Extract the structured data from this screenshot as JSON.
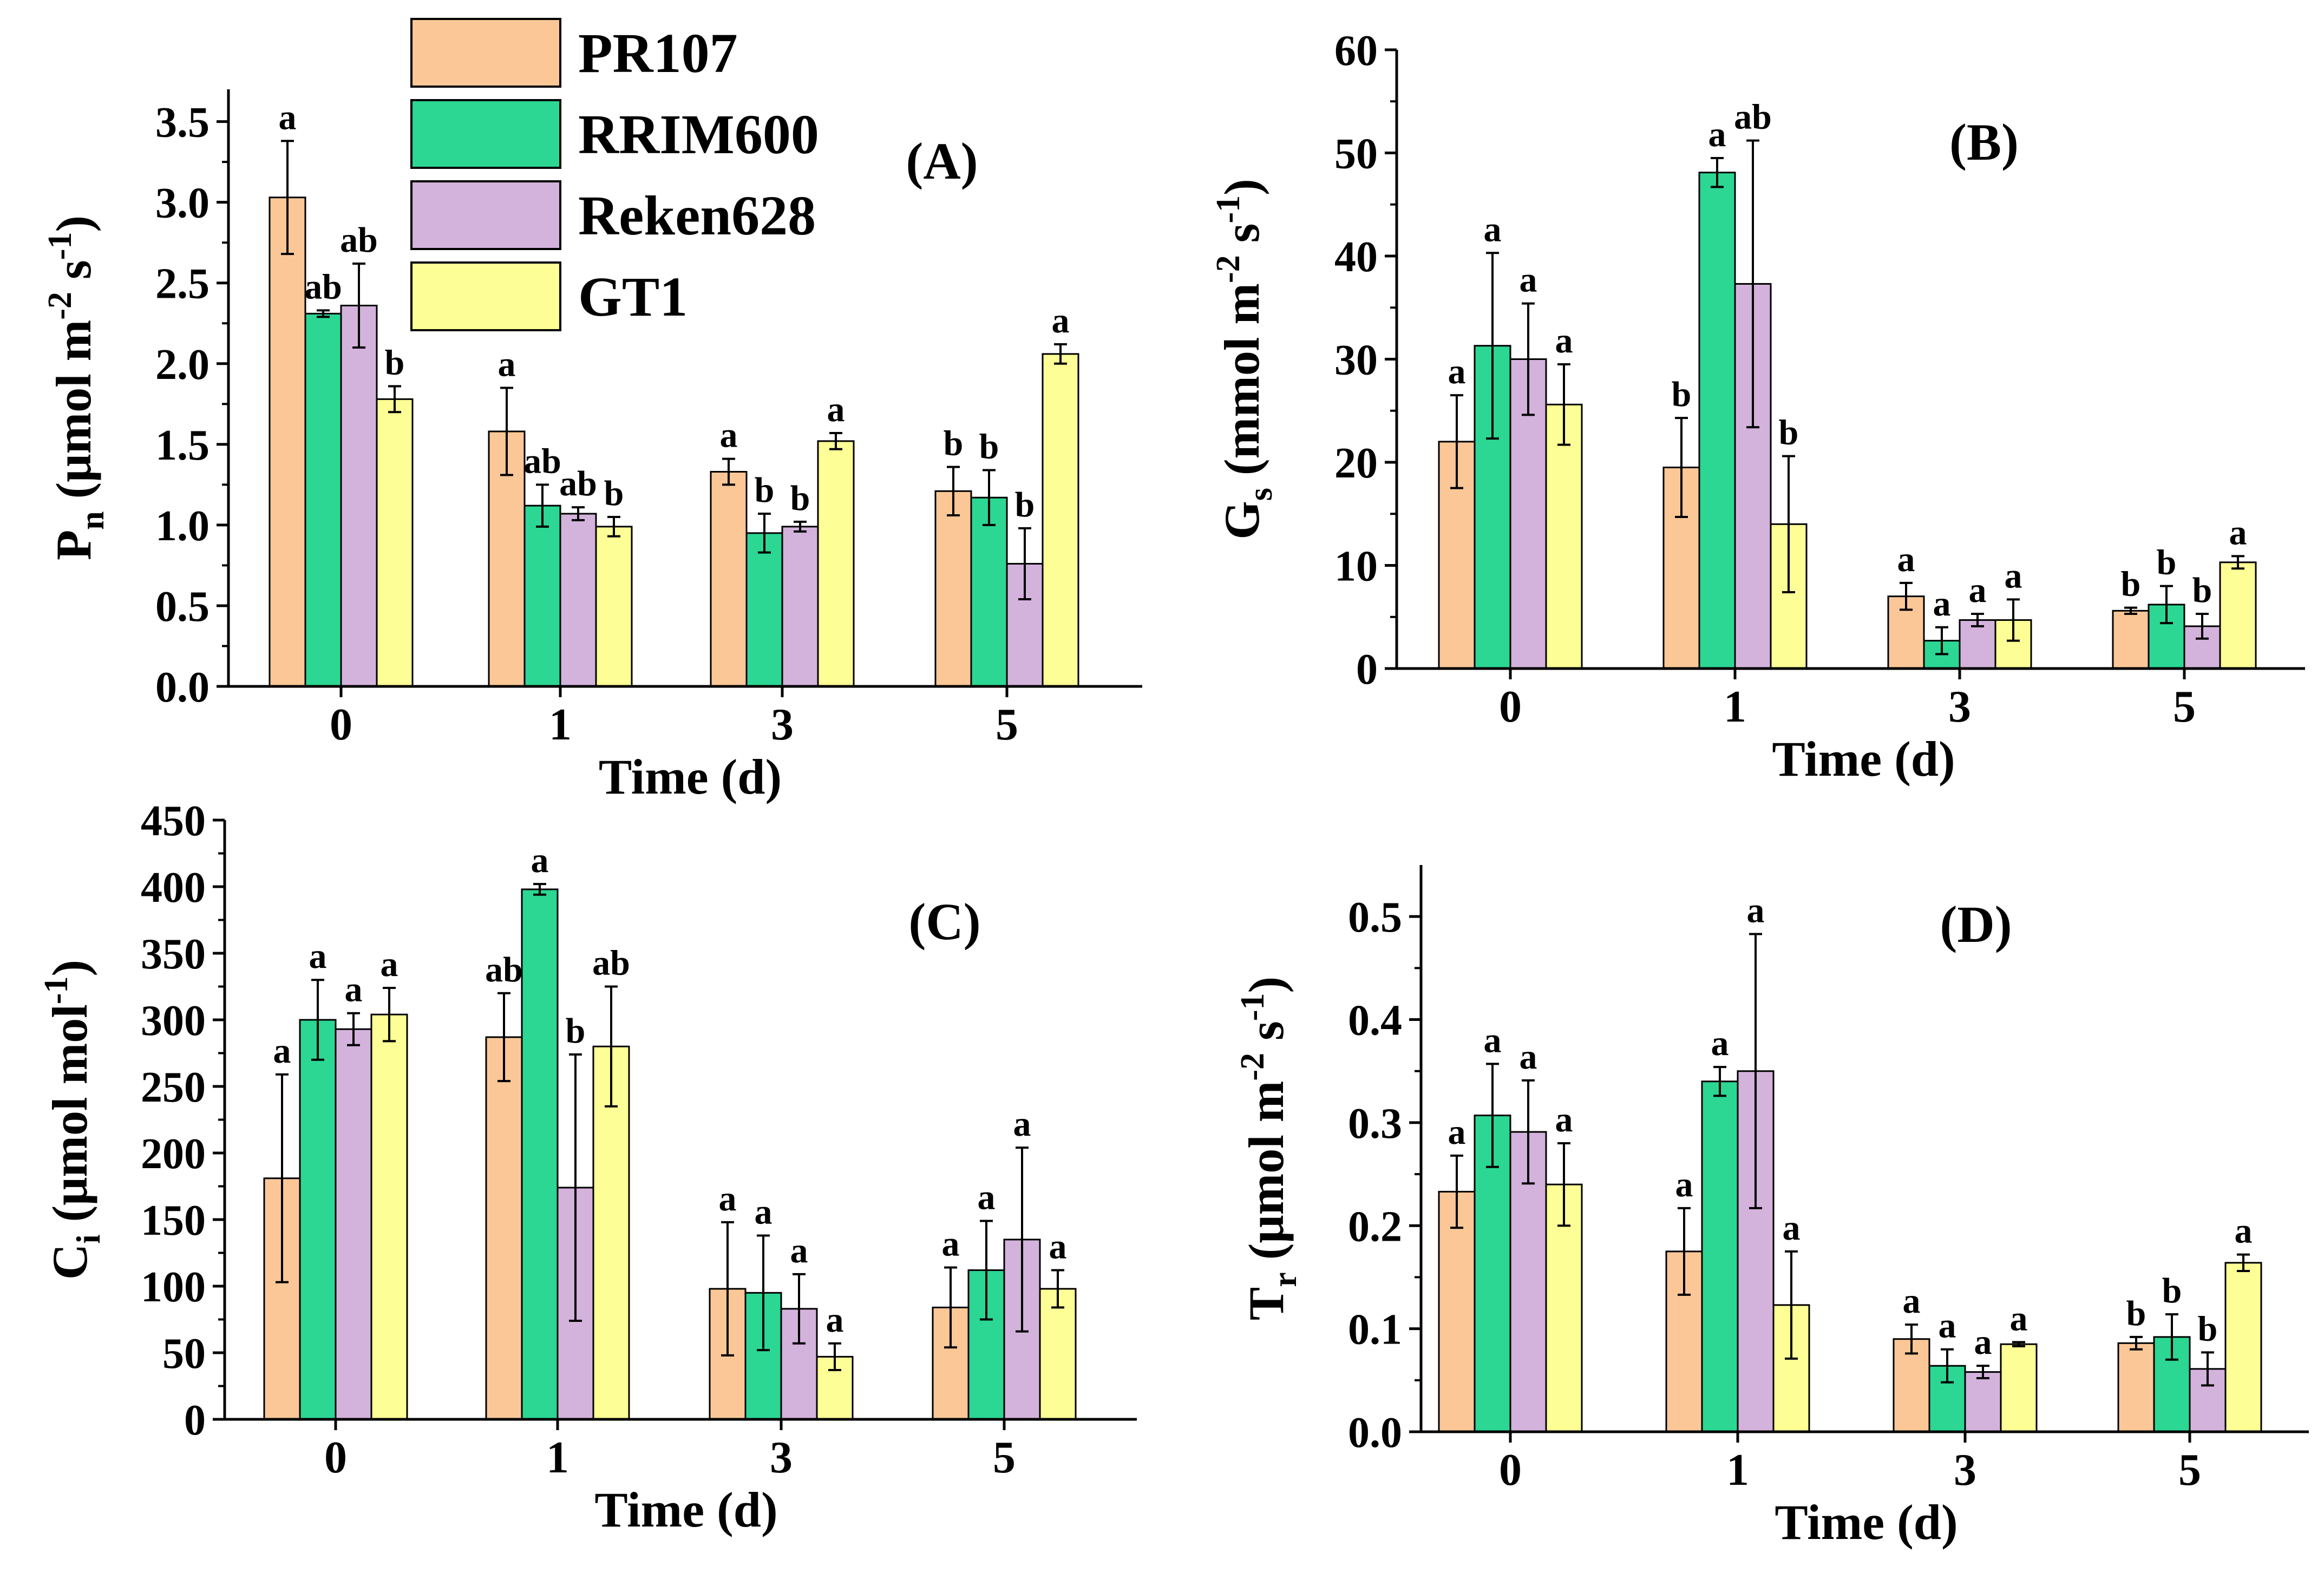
{
  "colors": {
    "PR107": "#FCC797",
    "RRIM600": "#2BD793",
    "Reken628": "#D3B2DB",
    "GT1": "#FEFE96"
  },
  "legend": [
    "PR107",
    "RRIM600",
    "Reken628",
    "GT1"
  ],
  "chart_data": [
    {
      "panel": "(A)",
      "type": "bar",
      "ylabel_main": "P",
      "ylabel_sub": "n",
      "yunit_pre": " (μmol m",
      "yunit_exp1": "-2",
      "yunit_mid": " s",
      "yunit_exp2": "-1",
      "yunit_post": ")",
      "xlabel": "Time (d)",
      "categories": [
        "0",
        "1",
        "3",
        "5"
      ],
      "ylim": [
        0,
        3.7
      ],
      "yticks": [
        "0.0",
        "0.5",
        "1.0",
        "1.5",
        "2.0",
        "2.5",
        "3.0",
        "3.5"
      ],
      "ytick_values": [
        0,
        0.5,
        1.0,
        1.5,
        2.0,
        2.5,
        3.0,
        3.5
      ],
      "series": [
        {
          "name": "PR107",
          "values": [
            3.03,
            1.58,
            1.33,
            1.21
          ],
          "errors": [
            0.35,
            0.27,
            0.08,
            0.15
          ],
          "letters": [
            "a",
            "a",
            "a",
            "b"
          ]
        },
        {
          "name": "RRIM600",
          "values": [
            2.31,
            1.12,
            0.95,
            1.17
          ],
          "errors": [
            0.02,
            0.13,
            0.12,
            0.17
          ],
          "letters": [
            "ab",
            "ab",
            "b",
            "b"
          ]
        },
        {
          "name": "Reken628",
          "values": [
            2.36,
            1.07,
            0.99,
            0.76
          ],
          "errors": [
            0.26,
            0.04,
            0.03,
            0.22
          ],
          "letters": [
            "ab",
            "ab",
            "b",
            "b"
          ]
        },
        {
          "name": "GT1",
          "values": [
            1.78,
            0.99,
            1.52,
            2.06
          ],
          "errors": [
            0.08,
            0.06,
            0.05,
            0.06
          ],
          "letters": [
            "b",
            "b",
            "a",
            "a"
          ]
        }
      ]
    },
    {
      "panel": "(B)",
      "type": "bar",
      "ylabel_main": "G",
      "ylabel_sub": "s",
      "yunit_pre": " (mmol m",
      "yunit_exp1": "-2",
      "yunit_mid": " s",
      "yunit_exp2": "-1",
      "yunit_post": ")",
      "xlabel": "Time (d)",
      "categories": [
        "0",
        "1",
        "3",
        "5"
      ],
      "ylim": [
        0,
        60
      ],
      "yticks": [
        "0",
        "10",
        "20",
        "30",
        "40",
        "50",
        "60"
      ],
      "ytick_values": [
        0,
        10,
        20,
        30,
        40,
        50,
        60
      ],
      "series": [
        {
          "name": "PR107",
          "values": [
            22,
            19.5,
            7,
            5.6
          ],
          "errors": [
            4.5,
            4.8,
            1.3,
            0.3
          ],
          "letters": [
            "a",
            "b",
            "a",
            "b"
          ]
        },
        {
          "name": "RRIM600",
          "values": [
            31.3,
            48.1,
            2.7,
            6.2
          ],
          "errors": [
            9,
            1.4,
            1.3,
            1.8
          ],
          "letters": [
            "a",
            "a",
            "a",
            "b"
          ]
        },
        {
          "name": "Reken628",
          "values": [
            30,
            37.3,
            4.7,
            4.1
          ],
          "errors": [
            5.4,
            13.9,
            0.6,
            1.2
          ],
          "letters": [
            "a",
            "ab",
            "a",
            "b"
          ]
        },
        {
          "name": "GT1",
          "values": [
            25.6,
            14,
            4.7,
            10.3
          ],
          "errors": [
            3.9,
            6.6,
            2,
            0.6
          ],
          "letters": [
            "a",
            "b",
            "a",
            "a"
          ]
        }
      ]
    },
    {
      "panel": "(C)",
      "type": "bar",
      "ylabel_main": "C",
      "ylabel_sub": "i",
      "yunit_pre": " (μmol mol",
      "yunit_exp1": "-1",
      "yunit_mid": "",
      "yunit_exp2": "",
      "yunit_post": ")",
      "xlabel": "Time (d)",
      "categories": [
        "0",
        "1",
        "3",
        "5"
      ],
      "ylim": [
        0,
        450
      ],
      "yticks": [
        "0",
        "50",
        "100",
        "150",
        "200",
        "250",
        "300",
        "350",
        "400",
        "450"
      ],
      "ytick_values": [
        0,
        50,
        100,
        150,
        200,
        250,
        300,
        350,
        400,
        450
      ],
      "series": [
        {
          "name": "PR107",
          "values": [
            181,
            287,
            98,
            84
          ],
          "errors": [
            78,
            33,
            50,
            30
          ],
          "letters": [
            "a",
            "ab",
            "a",
            "a"
          ]
        },
        {
          "name": "RRIM600",
          "values": [
            300,
            398,
            95,
            112
          ],
          "errors": [
            30,
            4,
            43,
            37
          ],
          "letters": [
            "a",
            "a",
            "a",
            "a"
          ]
        },
        {
          "name": "Reken628",
          "values": [
            293,
            174,
            83,
            135
          ],
          "errors": [
            12,
            100,
            26,
            69
          ],
          "letters": [
            "a",
            "b",
            "a",
            "a"
          ]
        },
        {
          "name": "GT1",
          "values": [
            304,
            280,
            47,
            98
          ],
          "errors": [
            20,
            45,
            10,
            14
          ],
          "letters": [
            "a",
            "ab",
            "a",
            "a"
          ]
        }
      ]
    },
    {
      "panel": "(D)",
      "type": "bar",
      "ylabel_main": "T",
      "ylabel_sub": "r",
      "yunit_pre": " (μmol m",
      "yunit_exp1": "-2",
      "yunit_mid": " s",
      "yunit_exp2": "-1",
      "yunit_post": ")",
      "xlabel": "Time (d)",
      "categories": [
        "0",
        "1",
        "3",
        "5"
      ],
      "ylim": [
        0,
        0.55
      ],
      "yticks": [
        "0.0",
        "0.1",
        "0.2",
        "0.3",
        "0.4",
        "0.5"
      ],
      "ytick_values": [
        0,
        0.1,
        0.2,
        0.3,
        0.4,
        0.5
      ],
      "series": [
        {
          "name": "PR107",
          "values": [
            0.233,
            0.175,
            0.09,
            0.086
          ],
          "errors": [
            0.035,
            0.042,
            0.014,
            0.006
          ],
          "letters": [
            "a",
            "a",
            "a",
            "b"
          ]
        },
        {
          "name": "RRIM600",
          "values": [
            0.307,
            0.34,
            0.064,
            0.092
          ],
          "errors": [
            0.05,
            0.014,
            0.016,
            0.022
          ],
          "letters": [
            "a",
            "a",
            "a",
            "b"
          ]
        },
        {
          "name": "Reken628",
          "values": [
            0.291,
            0.35,
            0.058,
            0.061
          ],
          "errors": [
            0.05,
            0.133,
            0.006,
            0.016
          ],
          "letters": [
            "a",
            "a",
            "a",
            "b"
          ]
        },
        {
          "name": "GT1",
          "values": [
            0.24,
            0.123,
            0.085,
            0.164
          ],
          "errors": [
            0.04,
            0.052,
            0.002,
            0.008
          ],
          "letters": [
            "a",
            "a",
            "a",
            "a"
          ]
        }
      ]
    }
  ]
}
